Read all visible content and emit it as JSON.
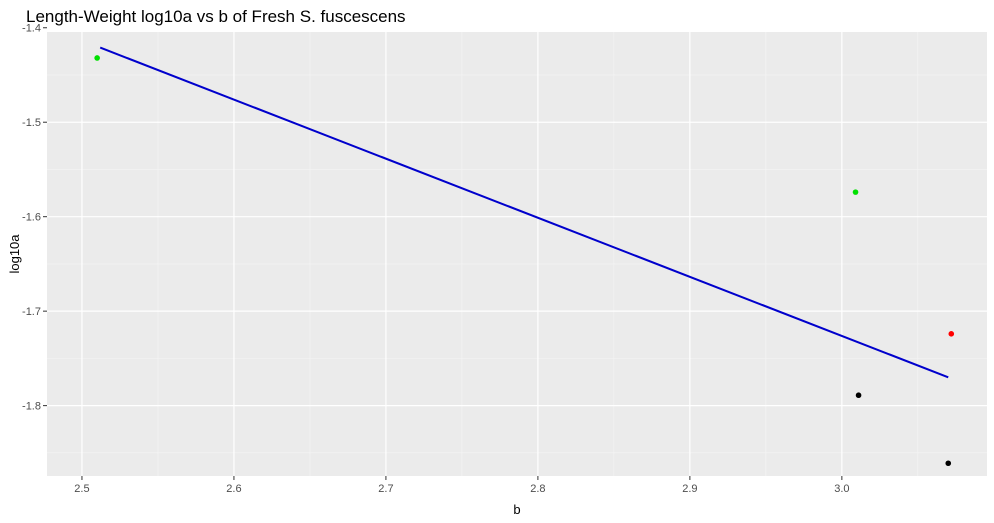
{
  "chart_data": {
    "type": "scatter",
    "title": "Length-Weight log10a vs b of Fresh S. fuscescens",
    "xlabel": "b",
    "ylabel": "log10a",
    "xlim": [
      2.477,
      3.0955
    ],
    "ylim": [
      -1.8745,
      -1.4045
    ],
    "x_ticks": [
      "2.5",
      "2.6",
      "2.7",
      "2.8",
      "2.9",
      "3.0"
    ],
    "y_ticks": [
      "-1.4",
      "-1.5",
      "-1.6",
      "-1.7",
      "-1.8"
    ],
    "grid": true,
    "background": "#ebebeb",
    "series": [
      {
        "color": "#00e000",
        "points": [
          [
            2.51,
            -1.432
          ],
          [
            3.009,
            -1.574
          ]
        ]
      },
      {
        "color": "#ff0000",
        "points": [
          [
            3.072,
            -1.724
          ]
        ]
      },
      {
        "color": "#000000",
        "points": [
          [
            3.011,
            -1.789
          ],
          [
            3.07,
            -1.861
          ]
        ]
      }
    ],
    "fit_line": {
      "color": "#0000cc",
      "from": [
        2.512,
        -1.421
      ],
      "to": [
        3.07,
        -1.77
      ]
    }
  }
}
